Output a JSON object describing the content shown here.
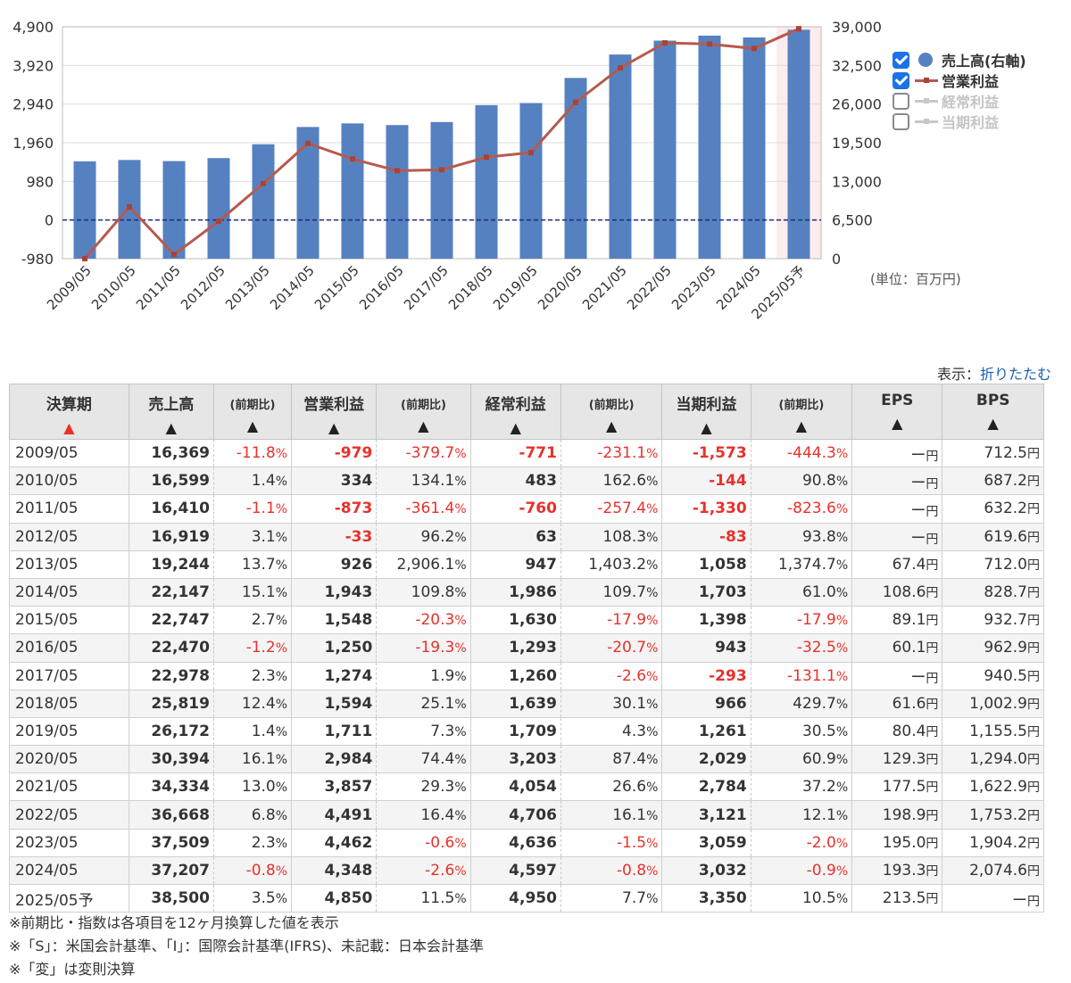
{
  "chart_data": {
    "type": "bar",
    "categories": [
      "2009/05",
      "2010/05",
      "2011/05",
      "2012/05",
      "2013/05",
      "2014/05",
      "2015/05",
      "2016/05",
      "2017/05",
      "2018/05",
      "2019/05",
      "2020/05",
      "2021/05",
      "2022/05",
      "2023/05",
      "2024/05",
      "2025/05予"
    ],
    "series": [
      {
        "name": "売上高(右軸)",
        "type": "bar",
        "axis": "right",
        "color": "#5681c0",
        "values": [
          16369,
          16599,
          16410,
          16919,
          19244,
          22147,
          22747,
          22470,
          22978,
          25819,
          26172,
          30394,
          34334,
          36668,
          37509,
          37207,
          38500
        ]
      },
      {
        "name": "営業利益",
        "type": "line",
        "axis": "left",
        "color": "#b65a4f",
        "values": [
          -979,
          334,
          -873,
          -33,
          926,
          1943,
          1548,
          1250,
          1274,
          1594,
          1711,
          2984,
          3857,
          4491,
          4462,
          4348,
          4850
        ]
      }
    ],
    "left_ticks": [
      "4,900",
      "3,920",
      "2,940",
      "1,960",
      "980",
      "0",
      "-980"
    ],
    "right_ticks": [
      "39,000",
      "32,500",
      "26,000",
      "19,500",
      "13,000",
      "6,500",
      "0"
    ],
    "left_range": [
      -980,
      4900
    ],
    "right_range": [
      0,
      39000
    ],
    "forecast_index": 16,
    "legend_placement": "right"
  },
  "legend": [
    {
      "label": "売上高(右軸)",
      "checked": true,
      "marker": "dot",
      "color": "#5681c0"
    },
    {
      "label": "営業利益",
      "checked": true,
      "marker": "line",
      "color": "#b65a4f"
    },
    {
      "label": "経常利益",
      "checked": false,
      "marker": "line",
      "color": "#c8c8c8"
    },
    {
      "label": "当期利益",
      "checked": false,
      "marker": "line",
      "color": "#c8c8c8"
    }
  ],
  "unit": "(単位：百万円)",
  "toggle": {
    "prefix": "表示：",
    "link": "折りたたむ"
  },
  "table": {
    "headers": [
      {
        "label": "決算期",
        "sort": "▲",
        "active": true
      },
      {
        "label": "売上高",
        "sort": "▲"
      },
      {
        "label": "(前期比)",
        "sort": "▲"
      },
      {
        "label": "営業利益",
        "sort": "▲"
      },
      {
        "label": "(前期比)",
        "sort": "▲"
      },
      {
        "label": "経常利益",
        "sort": "▲"
      },
      {
        "label": "(前期比)",
        "sort": "▲"
      },
      {
        "label": "当期利益",
        "sort": "▲"
      },
      {
        "label": "(前期比)",
        "sort": "▲"
      },
      {
        "label": "EPS",
        "sort": "▲"
      },
      {
        "label": "BPS",
        "sort": "▲"
      }
    ],
    "rows": [
      [
        "2009/05",
        "16,369",
        "-11.8",
        "-979",
        "-379.7",
        "-771",
        "-231.1",
        "-1,573",
        "-444.3",
        "ー",
        "712.5"
      ],
      [
        "2010/05",
        "16,599",
        "1.4",
        "334",
        "134.1",
        "483",
        "162.6",
        "-144",
        "90.8",
        "ー",
        "687.2"
      ],
      [
        "2011/05",
        "16,410",
        "-1.1",
        "-873",
        "-361.4",
        "-760",
        "-257.4",
        "-1,330",
        "-823.6",
        "ー",
        "632.2"
      ],
      [
        "2012/05",
        "16,919",
        "3.1",
        "-33",
        "96.2",
        "63",
        "108.3",
        "-83",
        "93.8",
        "ー",
        "619.6"
      ],
      [
        "2013/05",
        "19,244",
        "13.7",
        "926",
        "2,906.1",
        "947",
        "1,403.2",
        "1,058",
        "1,374.7",
        "67.4",
        "712.0"
      ],
      [
        "2014/05",
        "22,147",
        "15.1",
        "1,943",
        "109.8",
        "1,986",
        "109.7",
        "1,703",
        "61.0",
        "108.6",
        "828.7"
      ],
      [
        "2015/05",
        "22,747",
        "2.7",
        "1,548",
        "-20.3",
        "1,630",
        "-17.9",
        "1,398",
        "-17.9",
        "89.1",
        "932.7"
      ],
      [
        "2016/05",
        "22,470",
        "-1.2",
        "1,250",
        "-19.3",
        "1,293",
        "-20.7",
        "943",
        "-32.5",
        "60.1",
        "962.9"
      ],
      [
        "2017/05",
        "22,978",
        "2.3",
        "1,274",
        "1.9",
        "1,260",
        "-2.6",
        "-293",
        "-131.1",
        "ー",
        "940.5"
      ],
      [
        "2018/05",
        "25,819",
        "12.4",
        "1,594",
        "25.1",
        "1,639",
        "30.1",
        "966",
        "429.7",
        "61.6",
        "1,002.9"
      ],
      [
        "2019/05",
        "26,172",
        "1.4",
        "1,711",
        "7.3",
        "1,709",
        "4.3",
        "1,261",
        "30.5",
        "80.4",
        "1,155.5"
      ],
      [
        "2020/05",
        "30,394",
        "16.1",
        "2,984",
        "74.4",
        "3,203",
        "87.4",
        "2,029",
        "60.9",
        "129.3",
        "1,294.0"
      ],
      [
        "2021/05",
        "34,334",
        "13.0",
        "3,857",
        "29.3",
        "4,054",
        "26.6",
        "2,784",
        "37.2",
        "177.5",
        "1,622.9"
      ],
      [
        "2022/05",
        "36,668",
        "6.8",
        "4,491",
        "16.4",
        "4,706",
        "16.1",
        "3,121",
        "12.1",
        "198.9",
        "1,753.2"
      ],
      [
        "2023/05",
        "37,509",
        "2.3",
        "4,462",
        "-0.6",
        "4,636",
        "-1.5",
        "3,059",
        "-2.0",
        "195.0",
        "1,904.2"
      ],
      [
        "2024/05",
        "37,207",
        "-0.8",
        "4,348",
        "-2.6",
        "4,597",
        "-0.8",
        "3,032",
        "-0.9",
        "193.3",
        "2,074.6"
      ],
      [
        "2025/05予",
        "38,500",
        "3.5",
        "4,850",
        "11.5",
        "4,950",
        "7.7",
        "3,350",
        "10.5",
        "213.5",
        "ー"
      ]
    ],
    "pct_suffix": "%",
    "yen_suffix": "円"
  },
  "notes": [
    "※前期比・指数は各項目を12ヶ月換算した値を表示",
    "※「S」：米国会計基準、「I」：国際会計基準(IFRS)、未記載：日本会計基準",
    "※「変」は変則決算"
  ]
}
